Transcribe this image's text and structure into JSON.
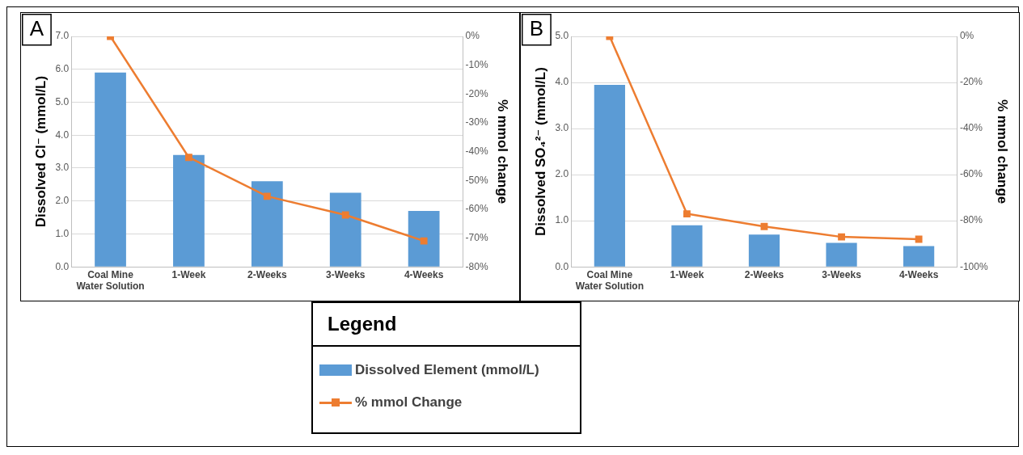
{
  "chart_data": [
    {
      "type": "bar",
      "title": "A",
      "categories": [
        "Coal Mine Water Solution",
        "1-Week",
        "2-Weeks",
        "3-Weeks",
        "4-Weeks"
      ],
      "ylabel": "Dissolved Cl⁻ (mmol/L)",
      "y2label": "% mmol change",
      "legend": "bottom",
      "legend_title": "Legend",
      "grid": "y",
      "marker": "square",
      "series": [
        {
          "name": "Dissolved Element (mmol/L)",
          "color": "#5b9bd5",
          "values": [
            5.9,
            3.4,
            2.6,
            2.25,
            1.7
          ]
        },
        {
          "name": "% mmol Change",
          "type": "line",
          "axis": "y2",
          "color": "#ed7d31",
          "values": [
            0,
            -42,
            -55.5,
            -62,
            -71
          ]
        }
      ],
      "ylim": [
        0,
        7
      ],
      "yticks": [
        {
          "value": 0,
          "label": "0.0"
        },
        {
          "value": 1,
          "label": "1.0"
        },
        {
          "value": 2,
          "label": "2.0"
        },
        {
          "value": 3,
          "label": "3.0"
        },
        {
          "value": 4,
          "label": "4.0"
        },
        {
          "value": 5,
          "label": "5.0"
        },
        {
          "value": 6,
          "label": "6.0"
        },
        {
          "value": 7,
          "label": "7.0"
        }
      ],
      "y2lim": [
        -80,
        0
      ],
      "y2ticks": [
        {
          "value": -80,
          "label": "-80%"
        },
        {
          "value": -70,
          "label": "-70%"
        },
        {
          "value": -60,
          "label": "-60%"
        },
        {
          "value": -50,
          "label": "-50%"
        },
        {
          "value": -40,
          "label": "-40%"
        },
        {
          "value": -30,
          "label": "-30%"
        },
        {
          "value": -20,
          "label": "-20%"
        },
        {
          "value": -10,
          "label": "-10%"
        },
        {
          "value": 0,
          "label": "0%"
        }
      ]
    },
    {
      "type": "bar",
      "title": "B",
      "categories": [
        "Coal Mine Water Solution",
        "1-Week",
        "2-Weeks",
        "3-Weeks",
        "4-Weeks"
      ],
      "ylabel": "Dissolved SO₄²⁻ (mmol/L)",
      "y2label": "% mmol change",
      "grid": "y",
      "marker": "square",
      "series": [
        {
          "color": "#5b9bd5",
          "values": [
            3.95,
            0.9,
            0.7,
            0.52,
            0.45
          ]
        },
        {
          "type": "line",
          "axis": "y2",
          "color": "#ed7d31",
          "values": [
            0,
            -77,
            -82.5,
            -87,
            -88
          ]
        }
      ],
      "ylim": [
        0,
        5
      ],
      "yticks": [
        {
          "value": 0,
          "label": "0.0"
        },
        {
          "value": 1,
          "label": "1.0"
        },
        {
          "value": 2,
          "label": "2.0"
        },
        {
          "value": 3,
          "label": "3.0"
        },
        {
          "value": 4,
          "label": "4.0"
        },
        {
          "value": 5,
          "label": "5.0"
        }
      ],
      "y2lim": [
        -100,
        0
      ],
      "y2ticks": [
        {
          "value": -100,
          "label": "-100%"
        },
        {
          "value": -80,
          "label": "-80%"
        },
        {
          "value": -60,
          "label": "-60%"
        },
        {
          "value": -40,
          "label": "-40%"
        },
        {
          "value": -20,
          "label": "-20%"
        },
        {
          "value": 0,
          "label": "0%"
        }
      ]
    }
  ]
}
